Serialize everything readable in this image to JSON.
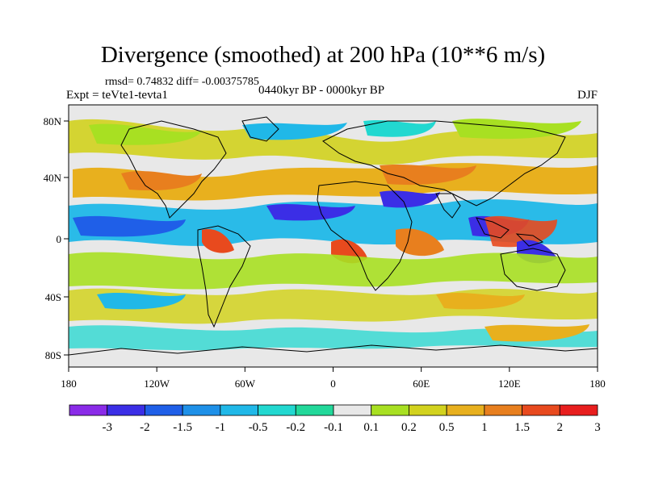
{
  "title": "Divergence (smoothed) at 200 hPa (10**6 m/s)",
  "stats": "rmsd= 0.74832  diff= -0.00375785",
  "experiment": "Expt = teVte1-tevta1",
  "period": "0440kyr BP - 0000kyr BP",
  "season": "DJF",
  "lat_labels": [
    "80N",
    "40N",
    "0",
    "40S",
    "80S"
  ],
  "lon_labels": [
    "180",
    "120W",
    "60W",
    "0",
    "60E",
    "120E",
    "180"
  ],
  "colorbar": {
    "labels": [
      "-3",
      "-2",
      "-1.5",
      "-1",
      "-0.5",
      "-0.2",
      "-0.1",
      "0.1",
      "0.2",
      "0.5",
      "1",
      "1.5",
      "2",
      "3"
    ],
    "colors": [
      "#8a2be8",
      "#3b2ee6",
      "#1f5fe8",
      "#1e90e8",
      "#20b8e8",
      "#22d8d0",
      "#22d89a",
      "#e8e8e8",
      "#a8e022",
      "#d2d21e",
      "#e8b01e",
      "#e87f1e",
      "#e84a1e",
      "#e81e1e"
    ]
  },
  "map_colors": {
    "background": "#e8e8e8",
    "coast": "#000000"
  }
}
